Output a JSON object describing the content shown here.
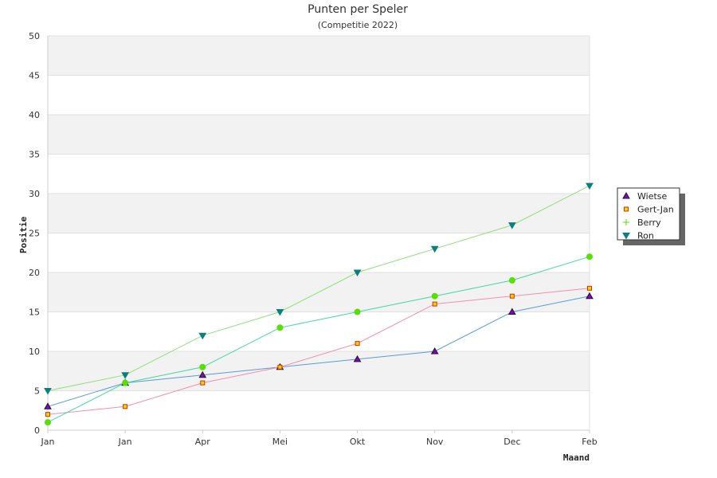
{
  "chart_data": {
    "type": "line",
    "title": "Punten per Speler",
    "subtitle": "(Competitie 2022)",
    "xlabel": "Maand",
    "ylabel": "Positie",
    "categories": [
      "Jan",
      "Jan",
      "Apr",
      "Mei",
      "Okt",
      "Nov",
      "Dec",
      "Feb"
    ],
    "ylim": [
      0,
      50
    ],
    "yticks": [
      0,
      5,
      10,
      15,
      20,
      25,
      30,
      35,
      40,
      45,
      50
    ],
    "grid": true,
    "legend_position": "right",
    "series": [
      {
        "name": "Wietse",
        "values": [
          3,
          6,
          7,
          8,
          9,
          10,
          15,
          17
        ],
        "line_color": "#5b9bd5",
        "marker": "triangle",
        "marker_fill": "#8b00c9",
        "marker_stroke": "#1a1a1a"
      },
      {
        "name": "Gert-Jan",
        "values": [
          2,
          3,
          6,
          8,
          11,
          16,
          17,
          18
        ],
        "line_color": "#f08fb0",
        "marker": "square",
        "marker_fill": "#ffd200",
        "marker_stroke": "#d32f00"
      },
      {
        "name": "Berry",
        "values": [
          1,
          6,
          8,
          13,
          15,
          17,
          19,
          22
        ],
        "line_color": "#3fd8a0",
        "marker": "circle",
        "marker_fill": "#55e000",
        "marker_stroke": "#55e000"
      },
      {
        "name": "Ron",
        "values": [
          5,
          7,
          12,
          15,
          20,
          23,
          26,
          31
        ],
        "line_color": "#8ee07a",
        "marker": "triangle-down",
        "marker_fill": "#0a7f7f",
        "marker_stroke": "#0a7f7f"
      }
    ]
  }
}
